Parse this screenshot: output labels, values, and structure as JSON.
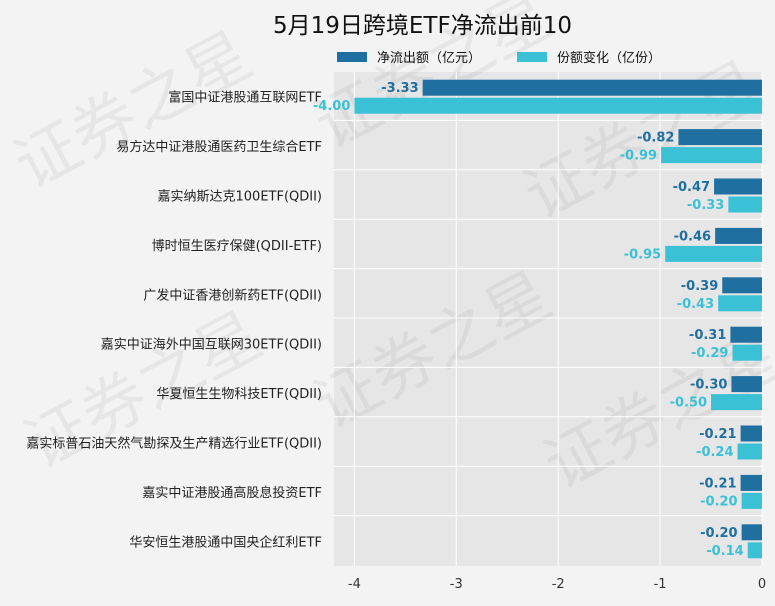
{
  "chart_data": {
    "type": "bar",
    "orientation": "horizontal",
    "title": "5月19日跨境ETF净流出前10",
    "categories": [
      "富国中证港股通互联网ETF",
      "易方达中证港股通医药卫生综合ETF",
      "嘉实纳斯达克100ETF(QDII)",
      "博时恒生医疗保健(QDII-ETF)",
      "广发中证香港创新药ETF(QDII)",
      "嘉实中证海外中国互联网30ETF(QDII)",
      "华夏恒生生物科技ETF(QDII)",
      "嘉实标普石油天然气勘探及生产精选行业ETF(QDII)",
      "嘉实中证港股通高股息投资ETF",
      "华安恒生港股通中国央企红利ETF"
    ],
    "series": [
      {
        "name": "净流出额（亿元）",
        "color": "#1f6fa0",
        "values": [
          -3.33,
          -0.82,
          -0.47,
          -0.46,
          -0.39,
          -0.31,
          -0.3,
          -0.21,
          -0.21,
          -0.2
        ],
        "labels": [
          "-3.33",
          "-0.82",
          "-0.47",
          "-0.46",
          "-0.39",
          "-0.31",
          "-0.30",
          "-0.21",
          "-0.21",
          "-0.20"
        ]
      },
      {
        "name": "份额变化（亿份）",
        "color": "#3bc1d6",
        "values": [
          -4.0,
          -0.99,
          -0.33,
          -0.95,
          -0.43,
          -0.29,
          -0.5,
          -0.24,
          -0.2,
          -0.14
        ],
        "labels": [
          "-4.00",
          "-0.99",
          "-0.33",
          "-0.95",
          "-0.43",
          "-0.29",
          "-0.50",
          "-0.24",
          "-0.20",
          "-0.14"
        ]
      }
    ],
    "xlim": [
      -4.2,
      0
    ],
    "xticks": [
      -4,
      -3,
      -2,
      -1,
      0
    ],
    "xtick_labels": [
      "-4",
      "-3",
      "-2",
      "-1",
      "0"
    ],
    "grid": true,
    "legend_position": "top",
    "watermark": "证券之星"
  }
}
